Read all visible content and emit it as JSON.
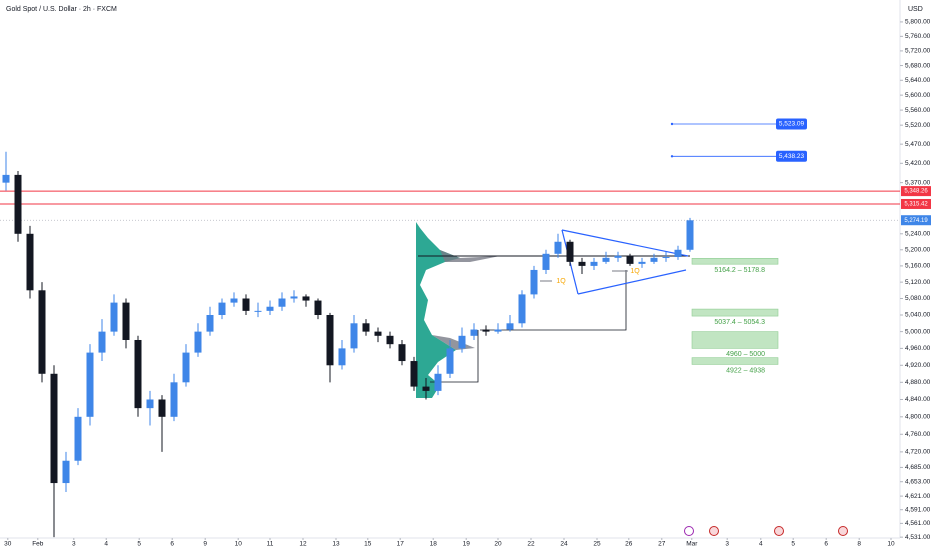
{
  "chart_data": {
    "type": "candlestick",
    "title": "Gold Spot / U.S. Dollar · 2h · FXCM",
    "currency": "USD",
    "log_scale": true,
    "ylim": [
      4527,
      5850
    ],
    "xlim": [
      0,
      150
    ],
    "up_color": "#3f86e8",
    "down_color": "#131722",
    "yticks": [
      {
        "value": 5800,
        "label": "5,800.00"
      },
      {
        "value": 5760,
        "label": "5,760.00"
      },
      {
        "value": 5720,
        "label": "5,720.00"
      },
      {
        "value": 5680,
        "label": "5,680.00"
      },
      {
        "value": 5640,
        "label": "5,640.00"
      },
      {
        "value": 5600,
        "label": "5,600.00"
      },
      {
        "value": 5560,
        "label": "5,560.00"
      },
      {
        "value": 5520,
        "label": "5,520.00"
      },
      {
        "value": 5470,
        "label": "5,470.00"
      },
      {
        "value": 5420,
        "label": "5,420.00"
      },
      {
        "value": 5370,
        "label": "5,370.00"
      },
      {
        "value": 5240,
        "label": "5,240.00"
      },
      {
        "value": 5200,
        "label": "5,200.00"
      },
      {
        "value": 5160,
        "label": "5,160.00"
      },
      {
        "value": 5120,
        "label": "5,120.00"
      },
      {
        "value": 5080,
        "label": "5,080.00"
      },
      {
        "value": 5040,
        "label": "5,040.00"
      },
      {
        "value": 5000,
        "label": "5,000.00"
      },
      {
        "value": 4960,
        "label": "4,960.00"
      },
      {
        "value": 4920,
        "label": "4,920.00"
      },
      {
        "value": 4880,
        "label": "4,880.00"
      },
      {
        "value": 4840,
        "label": "4,840.00"
      },
      {
        "value": 4800,
        "label": "4,800.00"
      },
      {
        "value": 4760,
        "label": "4,760.00"
      },
      {
        "value": 4720,
        "label": "4,720.00"
      },
      {
        "value": 4685,
        "label": "4,685.00"
      },
      {
        "value": 4653,
        "label": "4,653.00"
      },
      {
        "value": 4621,
        "label": "4,621.00"
      },
      {
        "value": 4591,
        "label": "4,591.00"
      },
      {
        "value": 4561,
        "label": "4,561.00"
      },
      {
        "value": 4531,
        "label": "4,531.00"
      }
    ],
    "xticks": [
      {
        "value": 1.3,
        "label": "30"
      },
      {
        "value": 6.3,
        "label": "Feb"
      },
      {
        "value": 12.3,
        "label": "3"
      },
      {
        "value": 17.7,
        "label": "4"
      },
      {
        "value": 23.2,
        "label": "5"
      },
      {
        "value": 28.7,
        "label": "6"
      },
      {
        "value": 34.2,
        "label": "9"
      },
      {
        "value": 39.7,
        "label": "10"
      },
      {
        "value": 45,
        "label": "11"
      },
      {
        "value": 50.5,
        "label": "12"
      },
      {
        "value": 56,
        "label": "13"
      },
      {
        "value": 61.3,
        "label": "15"
      },
      {
        "value": 66.7,
        "label": "17"
      },
      {
        "value": 72.2,
        "label": "18"
      },
      {
        "value": 77.7,
        "label": "19"
      },
      {
        "value": 83,
        "label": "20"
      },
      {
        "value": 88.5,
        "label": "22"
      },
      {
        "value": 94,
        "label": "24"
      },
      {
        "value": 99.5,
        "label": "25"
      },
      {
        "value": 104.8,
        "label": "26"
      },
      {
        "value": 110.3,
        "label": "27"
      },
      {
        "value": 115.3,
        "label": "Mar"
      },
      {
        "value": 121.2,
        "label": "3"
      },
      {
        "value": 126.8,
        "label": "4"
      },
      {
        "value": 132.2,
        "label": "5"
      },
      {
        "value": 137.7,
        "label": "6"
      },
      {
        "value": 143.2,
        "label": "8"
      },
      {
        "value": 148.5,
        "label": "10"
      }
    ],
    "x": [
      1,
      3,
      5,
      7,
      9,
      11,
      13,
      15,
      17,
      19,
      21,
      23,
      25,
      27,
      29,
      31,
      33,
      35,
      37,
      39,
      41,
      43,
      45,
      47,
      49,
      51,
      53,
      55,
      57,
      59,
      61,
      63,
      65,
      67,
      69,
      71,
      73,
      75,
      77,
      79,
      81,
      83,
      85,
      87,
      89,
      91,
      93,
      95,
      97,
      99,
      101,
      103,
      105,
      107,
      109,
      111,
      113,
      115
    ],
    "open": [
      5370,
      5390,
      5240,
      5100,
      4900,
      4650,
      4700,
      4800,
      4950,
      5000,
      5070,
      4980,
      4820,
      4840,
      4800,
      4880,
      4950,
      5000,
      5040,
      5070,
      5080,
      5050,
      5050,
      5060,
      5080,
      5085,
      5075,
      5040,
      4920,
      4960,
      5020,
      5000,
      4990,
      4970,
      4930,
      4870,
      4860,
      4900,
      4960,
      4990,
      5005,
      5000,
      5005,
      5020,
      5090,
      5150,
      5190,
      5220,
      5170,
      5160,
      5170,
      5180,
      5185,
      5165,
      5170,
      5180,
      5182,
      5200
    ],
    "high": [
      5450,
      5400,
      5260,
      5120,
      4920,
      4720,
      4820,
      4970,
      5030,
      5090,
      5080,
      4990,
      4860,
      4850,
      4900,
      4970,
      5020,
      5060,
      5080,
      5095,
      5090,
      5070,
      5075,
      5095,
      5100,
      5090,
      5080,
      5045,
      4980,
      5040,
      5030,
      5010,
      5000,
      4980,
      4940,
      4890,
      4920,
      4980,
      5010,
      5020,
      5015,
      5020,
      5040,
      5100,
      5160,
      5200,
      5240,
      5225,
      5180,
      5180,
      5195,
      5195,
      5190,
      5180,
      5190,
      5195,
      5210,
      5280
    ],
    "low": [
      5350,
      5220,
      5080,
      4880,
      4531,
      4630,
      4690,
      4780,
      4930,
      4990,
      4960,
      4800,
      4780,
      4720,
      4790,
      4870,
      4940,
      4990,
      5030,
      5060,
      5040,
      5035,
      5040,
      5050,
      5070,
      5060,
      5030,
      4880,
      4910,
      4950,
      4990,
      4975,
      4960,
      4920,
      4860,
      4840,
      4850,
      4890,
      4950,
      4980,
      4990,
      4995,
      5000,
      5010,
      5080,
      5140,
      5180,
      5160,
      5140,
      5150,
      5165,
      5170,
      5160,
      5155,
      5165,
      5170,
      5175,
      5195
    ],
    "close": [
      5390,
      5240,
      5100,
      4900,
      4650,
      4700,
      4800,
      4950,
      5000,
      5070,
      4980,
      4820,
      4840,
      4800,
      4880,
      4950,
      5000,
      5040,
      5070,
      5080,
      5050,
      5050,
      5060,
      5080,
      5085,
      5075,
      5040,
      4920,
      4960,
      5020,
      5000,
      4990,
      4970,
      4930,
      4870,
      4860,
      4900,
      4960,
      4990,
      5005,
      5000,
      5005,
      5020,
      5090,
      5150,
      5190,
      5220,
      5170,
      5160,
      5170,
      5180,
      5185,
      5165,
      5170,
      5180,
      5182,
      5200,
      5274
    ],
    "levels": [
      {
        "value": 5523.09,
        "label": "5,523.09",
        "color": "#2962ff",
        "from": 112
      },
      {
        "value": 5438.23,
        "label": "5,438.23",
        "color": "#2962ff",
        "from": 112
      },
      {
        "value": 5348.26,
        "label": "5,348.26",
        "color": "#f23645",
        "from": 0
      },
      {
        "value": 5315.42,
        "label": "5,315.42",
        "color": "#f23645",
        "from": 0
      },
      {
        "value": 5274.19,
        "label": "5,274.19",
        "color": "#3f86e8",
        "from": 0
      }
    ],
    "zones": [
      {
        "low": 5164.2,
        "high": 5178.8,
        "label": "5164.2 – 5178.8"
      },
      {
        "low": 5037.4,
        "high": 5054.3,
        "label": "5037.4 – 5054.3"
      },
      {
        "low": 4960,
        "high": 5000,
        "label": "4960 – 5000"
      },
      {
        "low": 4922,
        "high": 4938,
        "label": "4922 – 4938"
      }
    ],
    "annotations": [
      "1Q",
      "1Q"
    ]
  }
}
